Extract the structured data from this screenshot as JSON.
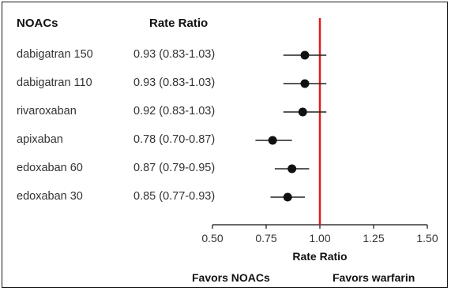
{
  "headers": {
    "drug": "NOACs",
    "rate_ratio": "Rate Ratio"
  },
  "footer": {
    "favors_left": "Favors NOACs",
    "favors_right": "Favors warfarin"
  },
  "colors": {
    "reference_line": "#e31b1b",
    "marker": "#111111",
    "ci_line": "#222222",
    "axis": "#111111"
  },
  "chart_data": {
    "type": "forest",
    "xlabel": "Rate Ratio",
    "xlim": [
      0.5,
      1.5
    ],
    "xticks": [
      "0.50",
      "0.75",
      "1.00",
      "1.25",
      "1.50"
    ],
    "reference_value": 1.0,
    "rows": [
      {
        "drug": "dabigatran 150",
        "label": "0.93 (0.83-1.03)",
        "est": 0.93,
        "lo": 0.83,
        "hi": 1.03
      },
      {
        "drug": "dabigatran 110",
        "label": "0.93 (0.83-1.03)",
        "est": 0.93,
        "lo": 0.83,
        "hi": 1.03
      },
      {
        "drug": "rivaroxaban",
        "label": "0.92 (0.83-1.03)",
        "est": 0.92,
        "lo": 0.83,
        "hi": 1.03
      },
      {
        "drug": "apixaban",
        "label": "0.78 (0.70-0.87)",
        "est": 0.78,
        "lo": 0.7,
        "hi": 0.87
      },
      {
        "drug": "edoxaban 60",
        "label": "0.87 (0.79-0.95)",
        "est": 0.87,
        "lo": 0.79,
        "hi": 0.95
      },
      {
        "drug": "edoxaban 30",
        "label": "0.85 (0.77-0.93)",
        "est": 0.85,
        "lo": 0.77,
        "hi": 0.93
      }
    ]
  }
}
